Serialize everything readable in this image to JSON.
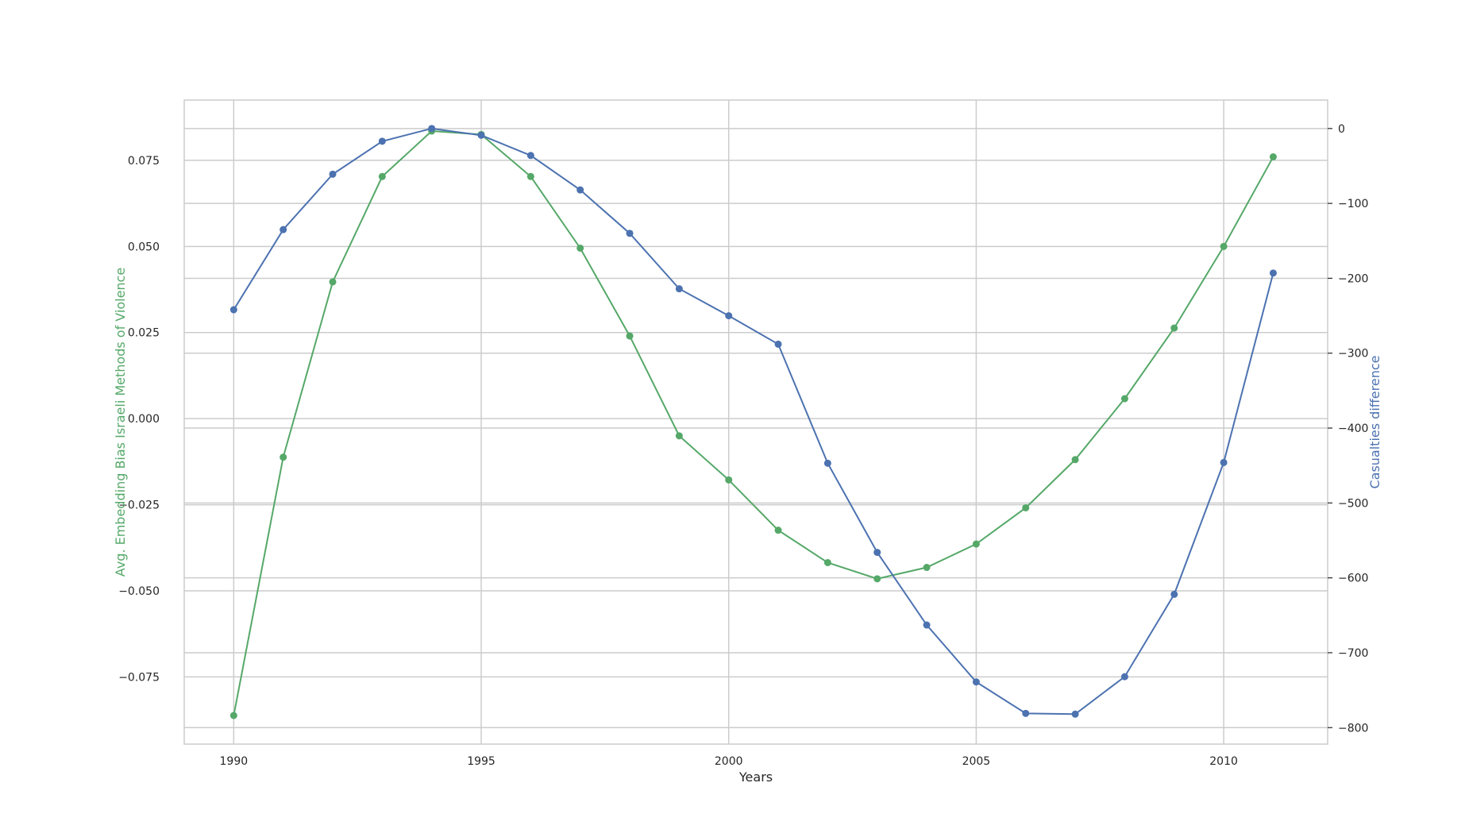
{
  "chart_data": {
    "type": "line",
    "title": "",
    "xlabel": "Years",
    "ylabel_left": "Avg. Embedding Bias Israeli Methods of Violence",
    "ylabel_right": "Casualties difference",
    "x": [
      1990,
      1991,
      1992,
      1993,
      1994,
      1995,
      1996,
      1997,
      1998,
      1999,
      2000,
      2001,
      2002,
      2003,
      2004,
      2005,
      2006,
      2007,
      2008,
      2009,
      2010,
      2011
    ],
    "xlim": [
      1989,
      2012.1
    ],
    "x_ticks": [
      1990,
      1995,
      2000,
      2005,
      2010
    ],
    "grid": true,
    "series": [
      {
        "axis": "left",
        "color": "#55a868",
        "values": [
          -0.0862,
          -0.0112,
          0.0397,
          0.0703,
          0.0835,
          0.0825,
          0.0703,
          0.0495,
          0.024,
          -0.005,
          -0.0178,
          -0.0324,
          -0.0418,
          -0.0465,
          -0.0432,
          -0.0364,
          -0.0259,
          -0.0119,
          0.0058,
          0.0263,
          0.05,
          0.076
        ]
      },
      {
        "axis": "right",
        "color": "#4c72b0",
        "values": [
          -242,
          -135,
          -61,
          -17,
          0,
          -9,
          -36,
          -82,
          -140,
          -214,
          -250,
          -288,
          -447,
          -566,
          -663,
          -739,
          -781,
          -782,
          -732,
          -622,
          -446,
          -193
        ]
      }
    ],
    "ylim_left": [
      -0.0945,
      0.0925
    ],
    "ylim_right": [
      -822,
      38
    ],
    "y_ticks_left": [
      -0.075,
      -0.05,
      -0.025,
      0.0,
      0.025,
      0.05,
      0.075
    ],
    "y_tick_labels_left": [
      "−0.075",
      "−0.050",
      "−0.025",
      "0.000",
      "0.025",
      "0.050",
      "0.075"
    ],
    "y_ticks_right": [
      0,
      -100,
      -200,
      -300,
      -400,
      -500,
      -600,
      -700,
      -800
    ],
    "y_tick_labels_right": [
      "0",
      "−100",
      "−200",
      "−300",
      "−400",
      "−500",
      "−600",
      "−700",
      "−800"
    ],
    "colors": {
      "left_axis_label": "#55a868",
      "right_axis_label": "#4c72b0",
      "grid": "#cccccc",
      "frame": "#cccccc",
      "text": "#262626"
    }
  }
}
